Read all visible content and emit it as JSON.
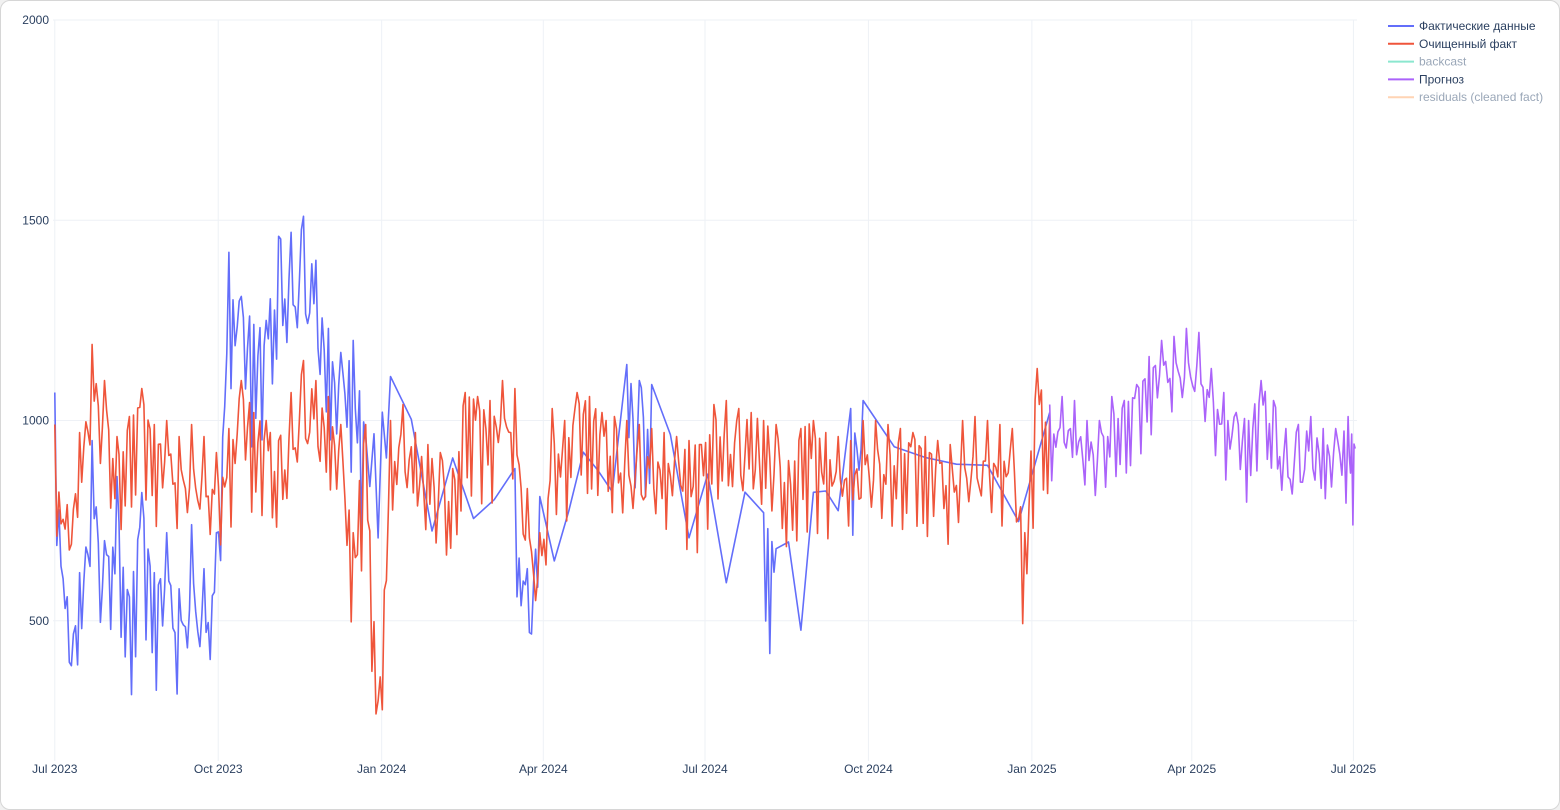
{
  "chart_data": {
    "type": "line",
    "title": "",
    "xlabel": "",
    "ylabel": "",
    "ylim": [
      150,
      2000
    ],
    "y_ticks": [
      500,
      1000,
      1500,
      2000
    ],
    "y_tick_labels": [
      "500",
      "1000",
      "1500",
      "2000"
    ],
    "x_range": [
      "2023-06-30",
      "2025-07-03"
    ],
    "x_ticks": [
      "2023-07-01",
      "2023-10-01",
      "2024-01-01",
      "2024-04-01",
      "2024-07-01",
      "2024-10-01",
      "2025-01-01",
      "2025-04-01",
      "2025-07-01"
    ],
    "x_tick_labels": [
      "Jul 2023",
      "Oct 2023",
      "Jan 2024",
      "Apr 2024",
      "Jul 2024",
      "Oct 2024",
      "Jan 2025",
      "Apr 2025",
      "Jul 2025"
    ],
    "grid": true,
    "legend_position": "top-right",
    "series": [
      {
        "name": "Фактические данные",
        "color": "#636efa",
        "visible": true,
        "x": [
          "2023-07-01",
          "2023-07-08",
          "2023-07-15",
          "2023-07-22",
          "2023-07-29",
          "2023-08-05",
          "2023-08-12",
          "2023-08-19",
          "2023-08-26",
          "2023-09-02",
          "2023-09-09",
          "2023-09-16",
          "2023-09-23",
          "2023-09-30",
          "2023-10-07",
          "2023-10-14",
          "2023-10-21",
          "2023-10-28",
          "2023-11-04",
          "2023-11-11",
          "2023-11-18",
          "2023-11-25",
          "2023-12-02",
          "2023-12-09",
          "2023-12-16",
          "2023-12-23",
          "2024-01-06",
          "2024-03-16",
          "2024-03-23",
          "2024-03-30",
          "2024-05-18",
          "2024-05-25",
          "2024-06-01",
          "2024-08-03",
          "2024-08-10",
          "2024-09-21",
          "2024-09-28",
          "2025-01-11"
        ],
        "values": [
          1070,
          560,
          620,
          950,
          700,
          860,
          560,
          820,
          620,
          720,
          580,
          740,
          630,
          720,
          1420,
          1310,
          1240,
          1250,
          1460,
          1470,
          1510,
          1400,
          1230,
          1170,
          1200,
          960,
          1110,
          880,
          630,
          810,
          1140,
          1100,
          1090,
          770,
          680,
          1030,
          1050,
          1020
        ]
      },
      {
        "name": "Очищенный факт",
        "color": "#ef553b",
        "visible": true,
        "x": [
          "2023-07-01",
          "2023-07-08",
          "2023-07-15",
          "2023-07-22",
          "2023-07-29",
          "2023-08-05",
          "2023-08-12",
          "2023-08-19",
          "2023-08-26",
          "2023-09-02",
          "2023-09-09",
          "2023-09-16",
          "2023-09-23",
          "2023-09-30",
          "2023-10-07",
          "2023-10-14",
          "2023-10-21",
          "2023-10-28",
          "2023-11-04",
          "2023-11-11",
          "2023-11-18",
          "2023-11-25",
          "2023-12-02",
          "2023-12-09",
          "2023-12-16",
          "2023-12-23",
          "2023-12-30",
          "2024-01-06",
          "2024-01-13",
          "2024-01-20",
          "2024-01-27",
          "2024-02-03",
          "2024-02-10",
          "2024-02-17",
          "2024-02-24",
          "2024-03-02",
          "2024-03-09",
          "2024-03-16",
          "2024-03-23",
          "2024-03-30",
          "2024-04-06",
          "2024-04-13",
          "2024-04-20",
          "2024-04-27",
          "2024-05-04",
          "2024-05-11",
          "2024-05-18",
          "2024-05-25",
          "2024-06-01",
          "2024-06-08",
          "2024-06-15",
          "2024-06-22",
          "2024-06-29",
          "2024-07-06",
          "2024-07-13",
          "2024-07-20",
          "2024-07-27",
          "2024-08-03",
          "2024-08-10",
          "2024-08-17",
          "2024-08-24",
          "2024-08-31",
          "2024-09-07",
          "2024-09-14",
          "2024-09-21",
          "2024-09-28",
          "2024-10-05",
          "2024-10-12",
          "2024-10-19",
          "2024-10-26",
          "2024-11-02",
          "2024-11-09",
          "2024-11-16",
          "2024-11-23",
          "2024-11-30",
          "2024-12-07",
          "2024-12-14",
          "2024-12-21",
          "2024-12-28",
          "2025-01-04",
          "2025-01-11"
        ],
        "values": [
          990,
          790,
          970,
          1190,
          1100,
          960,
          1010,
          1080,
          990,
          1000,
          960,
          990,
          960,
          920,
          980,
          1100,
          1020,
          1000,
          950,
          1070,
          1150,
          1100,
          1060,
          990,
          720,
          990,
          300,
          1000,
          1040,
          970,
          940,
          920,
          880,
          1070,
          1060,
          1050,
          1100,
          1080,
          830,
          720,
          1030,
          1000,
          1070,
          1060,
          1020,
          1010,
          1000,
          990,
          980,
          970,
          960,
          950,
          940,
          1040,
          1050,
          1030,
          1020,
          1000,
          990,
          900,
          980,
          1000,
          970,
          960,
          950,
          1000,
          1000,
          990,
          980,
          970,
          960,
          950,
          940,
          1000,
          1010,
          1000,
          990,
          980,
          720,
          1130,
          1010
        ]
      },
      {
        "name": "backcast",
        "color": "#00cc96",
        "visible": false,
        "x": [],
        "values": []
      },
      {
        "name": "Прогноз",
        "color": "#ab63fa",
        "visible": true,
        "x": [
          "2025-01-11",
          "2025-01-18",
          "2025-01-25",
          "2025-02-01",
          "2025-02-08",
          "2025-02-15",
          "2025-02-22",
          "2025-03-01",
          "2025-03-08",
          "2025-03-15",
          "2025-03-22",
          "2025-03-29",
          "2025-04-05",
          "2025-04-12",
          "2025-04-19",
          "2025-04-26",
          "2025-05-03",
          "2025-05-10",
          "2025-05-17",
          "2025-05-24",
          "2025-05-31",
          "2025-06-07",
          "2025-06-14",
          "2025-06-21",
          "2025-06-28",
          "2025-07-02"
        ],
        "values": [
          1040,
          1060,
          1050,
          1000,
          1000,
          1060,
          1050,
          1090,
          1160,
          1200,
          1210,
          1230,
          1220,
          1130,
          1070,
          1020,
          1000,
          1100,
          1050,
          980,
          990,
          1010,
          980,
          980,
          1010,
          930
        ]
      },
      {
        "name": "residuals (cleaned fact)",
        "color": "#ffa15a",
        "visible": false,
        "x": [],
        "values": []
      }
    ]
  }
}
